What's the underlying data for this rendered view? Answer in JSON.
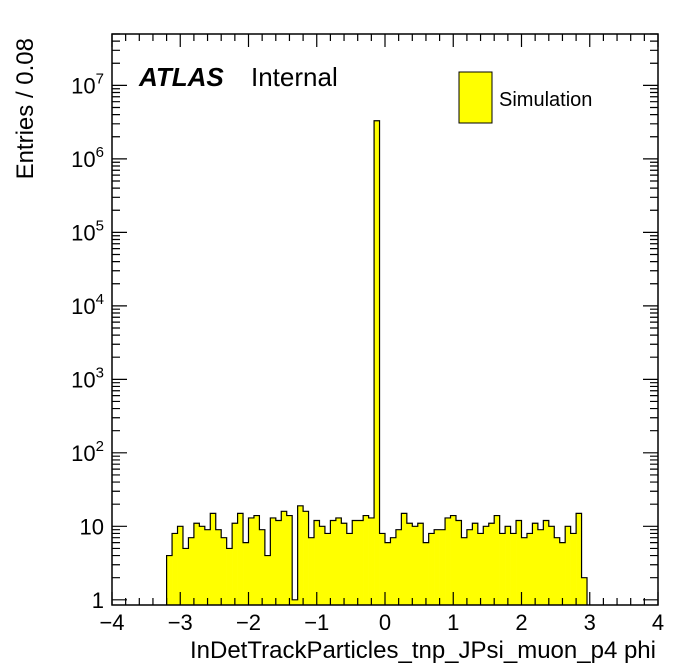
{
  "chart_data": {
    "type": "bar",
    "histogram": true,
    "xlabel": "InDetTrackParticles_tnp_JPsi_muon_p4 phi",
    "ylabel": "Entries / 0.08",
    "xlim": [
      -4,
      4
    ],
    "ylim": [
      0.85,
      50000000
    ],
    "log_y": true,
    "bin_width": 0.08,
    "x_ticks": [
      -4,
      -3,
      -2,
      -1,
      0,
      1,
      2,
      3,
      4
    ],
    "x_tick_labels": [
      "−4",
      "−3",
      "−2",
      "−1",
      "0",
      "1",
      "2",
      "3",
      "4"
    ],
    "y_ticks": [
      1,
      10,
      100,
      1000,
      10000,
      100000,
      1000000,
      10000000
    ],
    "y_tick_labels": [
      {
        "base": "1",
        "exp": ""
      },
      {
        "base": "10",
        "exp": ""
      },
      {
        "base": "10",
        "exp": "2"
      },
      {
        "base": "10",
        "exp": "3"
      },
      {
        "base": "10",
        "exp": "4"
      },
      {
        "base": "10",
        "exp": "5"
      },
      {
        "base": "10",
        "exp": "6"
      },
      {
        "base": "10",
        "exp": "7"
      }
    ],
    "fill_color": "#ffff00",
    "line_color": "#000000",
    "grid": false,
    "legend_position": "top-right",
    "series": [
      {
        "name": "Simulation",
        "bin_edges_start": -3.2,
        "values": [
          4,
          8,
          10,
          5,
          7,
          11,
          10,
          9,
          15,
          9,
          7,
          5,
          11,
          15,
          6,
          13,
          14,
          9,
          4,
          13,
          12,
          16,
          14,
          1,
          19,
          16,
          7,
          12,
          10,
          8,
          12,
          13,
          11,
          8,
          12,
          12,
          14,
          13,
          3300000,
          8,
          6,
          7,
          9,
          15,
          11,
          10,
          11,
          6,
          8,
          9,
          9,
          13,
          14,
          12,
          7,
          9,
          11,
          8,
          10,
          11,
          14,
          8,
          10,
          8,
          12,
          7,
          8,
          11,
          9,
          12,
          10,
          7,
          6,
          10,
          8,
          15,
          2
        ]
      }
    ],
    "annotations": {
      "atlas": "ATLAS",
      "label": "Internal"
    }
  }
}
